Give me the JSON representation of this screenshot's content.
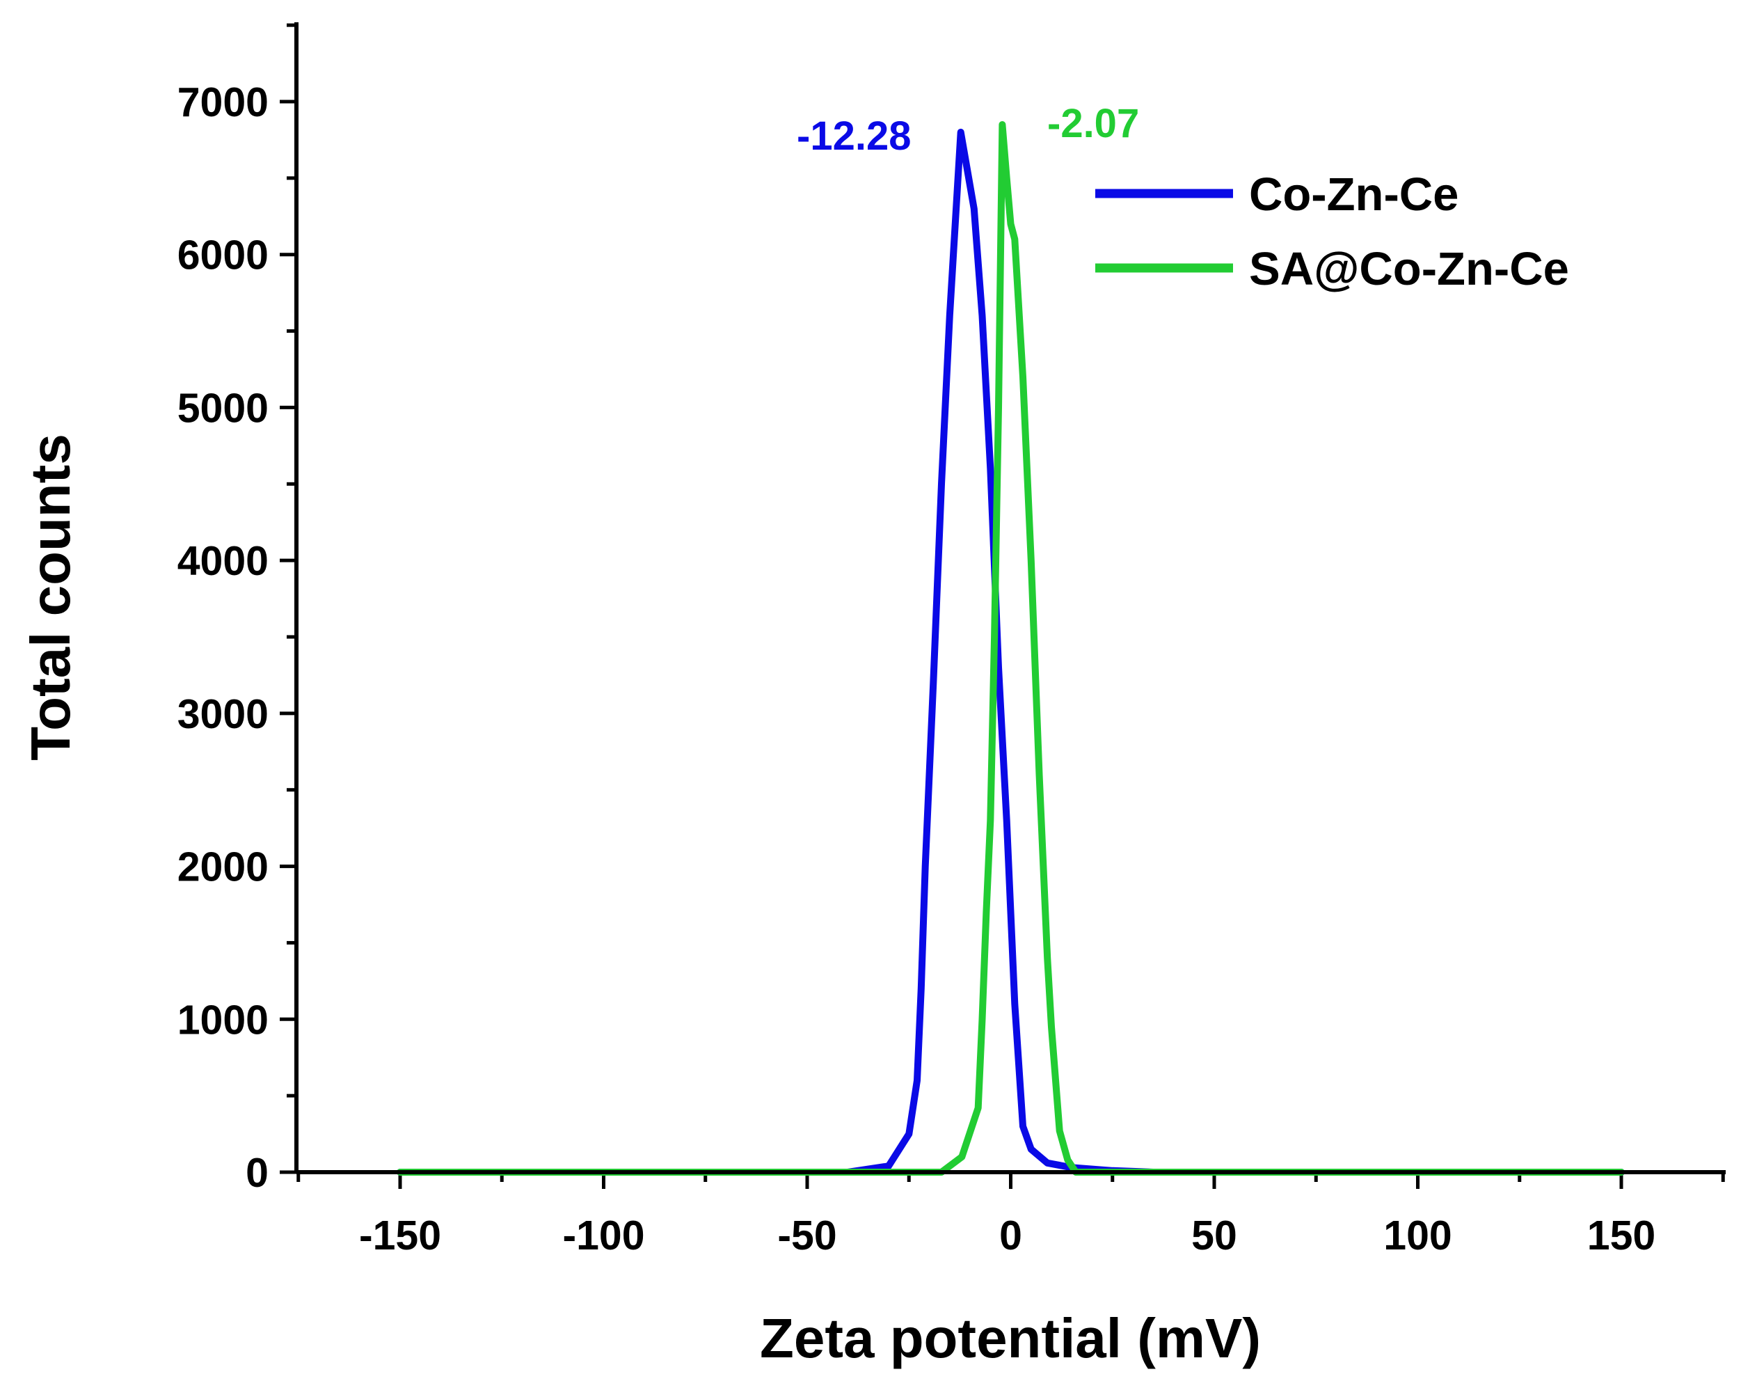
{
  "chart_data": {
    "type": "line",
    "title": "",
    "xlabel": "Zeta potential (mV)",
    "ylabel": "Total counts",
    "xlim": [
      -175,
      175
    ],
    "ylim": [
      0,
      7500
    ],
    "xticks": [
      -150,
      -100,
      -50,
      0,
      50,
      100,
      150
    ],
    "xtick_labels": [
      "-150",
      "-100",
      "-50",
      "0",
      "50",
      "100",
      "150"
    ],
    "yticks": [
      0,
      1000,
      2000,
      3000,
      4000,
      5000,
      6000,
      7000
    ],
    "ytick_labels": [
      "0",
      "1000",
      "2000",
      "3000",
      "4000",
      "5000",
      "6000",
      "7000"
    ],
    "grid": false,
    "legend_position": "top-right",
    "series": [
      {
        "name": "Co-Zn-Ce",
        "color": "#0a0ae6",
        "x": [
          -150,
          -40,
          -30,
          -25,
          -23,
          -22,
          -21,
          -19,
          -17,
          -15,
          -12.28,
          -9,
          -7,
          -5,
          -3,
          -1,
          0,
          1,
          3,
          5,
          9,
          15,
          25,
          35,
          150
        ],
        "y": [
          0,
          0,
          40,
          250,
          600,
          1200,
          2000,
          3200,
          4500,
          5600,
          6800,
          6300,
          5600,
          4600,
          3300,
          2300,
          1700,
          1100,
          300,
          150,
          60,
          30,
          10,
          0,
          0
        ],
        "peak_label": "-12.28"
      },
      {
        "name": "SA@Co-Zn-Ce",
        "color": "#22cc33",
        "x": [
          -150,
          -17,
          -12,
          -8,
          -7,
          -6,
          -5,
          -4,
          -3,
          -2.07,
          -1,
          0,
          1,
          3,
          5,
          7,
          9,
          10,
          12,
          14,
          16,
          150
        ],
        "y": [
          0,
          0,
          100,
          420,
          1000,
          1700,
          2300,
          3500,
          5000,
          6850,
          6500,
          6200,
          6100,
          5200,
          4000,
          2600,
          1400,
          950,
          270,
          80,
          0,
          0
        ],
        "peak_label": "-2.07"
      }
    ]
  }
}
